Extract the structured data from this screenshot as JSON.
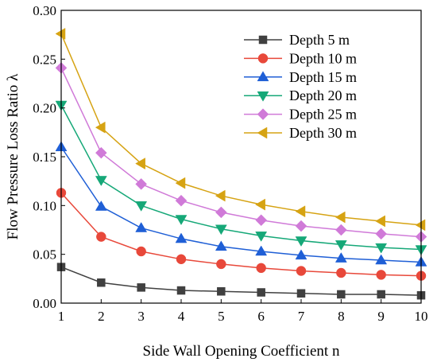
{
  "chart_data": {
    "type": "line",
    "xlabel": "Side Wall Opening Coefficient n",
    "ylabel": "Flow Pressure Loss Ratio λ",
    "xlim": [
      1,
      10
    ],
    "ylim": [
      0,
      0.3
    ],
    "xticks": [
      "1",
      "2",
      "3",
      "4",
      "5",
      "6",
      "7",
      "8",
      "9",
      "10"
    ],
    "yticks": [
      "0.00",
      "0.05",
      "0.10",
      "0.15",
      "0.20",
      "0.25",
      "0.30"
    ],
    "grid": false,
    "legend_position": "top-right",
    "x": [
      1,
      2,
      3,
      4,
      5,
      6,
      7,
      8,
      9,
      10
    ],
    "series": [
      {
        "name": "Depth 5 m",
        "color": "#404040",
        "marker": "square",
        "values": [
          0.037,
          0.021,
          0.016,
          0.013,
          0.012,
          0.011,
          0.01,
          0.009,
          0.009,
          0.008
        ]
      },
      {
        "name": "Depth 10 m",
        "color": "#e8483a",
        "marker": "circle",
        "values": [
          0.113,
          0.068,
          0.053,
          0.045,
          0.04,
          0.036,
          0.033,
          0.031,
          0.029,
          0.028
        ]
      },
      {
        "name": "Depth 15 m",
        "color": "#1f5fd6",
        "marker": "triangle-up",
        "values": [
          0.16,
          0.099,
          0.077,
          0.066,
          0.058,
          0.053,
          0.049,
          0.046,
          0.044,
          0.042
        ]
      },
      {
        "name": "Depth 20 m",
        "color": "#16a878",
        "marker": "triangle-down",
        "values": [
          0.203,
          0.126,
          0.1,
          0.086,
          0.076,
          0.069,
          0.064,
          0.06,
          0.057,
          0.055
        ]
      },
      {
        "name": "Depth 25 m",
        "color": "#d07ad8",
        "marker": "diamond",
        "values": [
          0.241,
          0.154,
          0.122,
          0.105,
          0.093,
          0.085,
          0.079,
          0.075,
          0.071,
          0.068
        ]
      },
      {
        "name": "Depth 30 m",
        "color": "#d6a313",
        "marker": "triangle-left",
        "values": [
          0.276,
          0.18,
          0.143,
          0.123,
          0.11,
          0.101,
          0.094,
          0.088,
          0.084,
          0.08
        ]
      }
    ]
  }
}
